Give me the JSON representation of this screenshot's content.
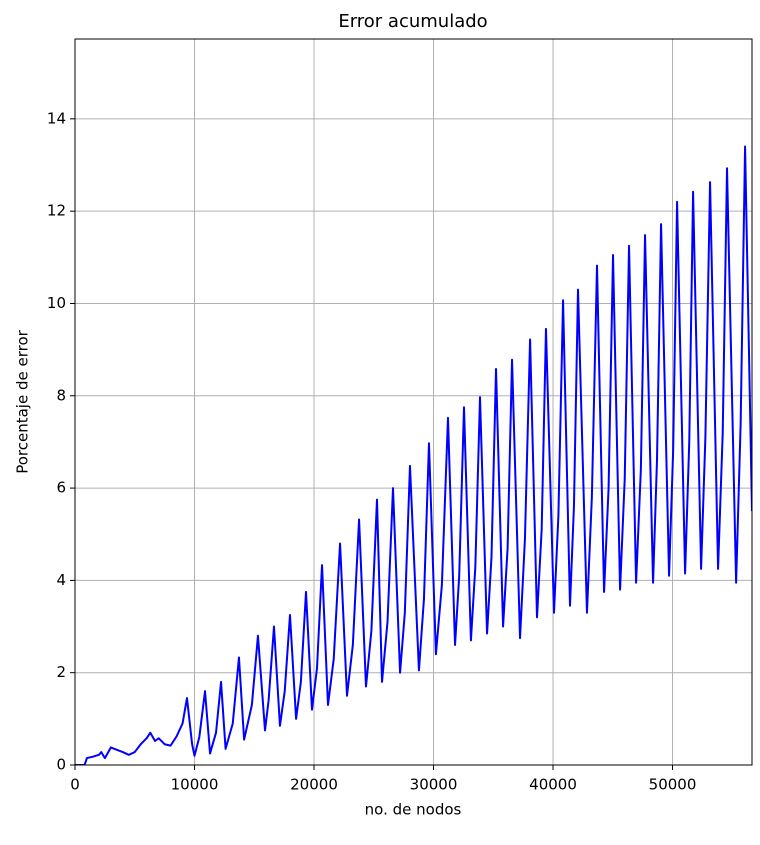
{
  "chart_data": {
    "type": "line",
    "title": "Error acumulado",
    "x_label": "no. de nodos",
    "y_label": "Porcentaje de error",
    "color": "#0000ff",
    "grid": true,
    "xlim": [
      0,
      56650
    ],
    "ylim": [
      0,
      15.73
    ],
    "xticks": [
      0,
      10000,
      20000,
      30000,
      40000,
      50000
    ],
    "yticks": [
      0,
      2,
      4,
      6,
      8,
      10,
      12,
      14
    ],
    "x": [
      0,
      800,
      1000,
      1500,
      2000,
      2200,
      2500,
      3000,
      3500,
      4000,
      4500,
      5000,
      5500,
      6000,
      6300,
      6700,
      7000,
      7500,
      8000,
      8500,
      9000,
      9370,
      9800,
      10000,
      10400,
      10880,
      11300,
      11800,
      12220,
      12600,
      13200,
      13720,
      14150,
      14800,
      15310,
      15900,
      16200,
      16650,
      17150,
      17550,
      17990,
      18500,
      18900,
      19330,
      19830,
      20250,
      20670,
      21170,
      21650,
      22180,
      22760,
      23250,
      23770,
      24350,
      24800,
      25270,
      25690,
      26150,
      26610,
      27200,
      27600,
      28030,
      28780,
      29200,
      29620,
      30200,
      30700,
      31210,
      31800,
      32150,
      32550,
      33130,
      33500,
      33890,
      34480,
      34850,
      35230,
      35820,
      36200,
      36570,
      37240,
      37650,
      38080,
      38660,
      39050,
      39410,
      40080,
      40450,
      40840,
      41420,
      41750,
      42090,
      42840,
      43250,
      43680,
      44270,
      44650,
      45020,
      45610,
      46000,
      46360,
      46950,
      47350,
      47700,
      48370,
      48700,
      49040,
      49710,
      50050,
      50380,
      51050,
      51400,
      51720,
      52390,
      52750,
      53140,
      53810,
      54200,
      54560,
      55320,
      55700,
      56070,
      56650
    ],
    "values": [
      0,
      0,
      0.15,
      0.18,
      0.22,
      0.28,
      0.15,
      0.38,
      0.33,
      0.28,
      0.22,
      0.28,
      0.45,
      0.58,
      0.7,
      0.52,
      0.58,
      0.45,
      0.42,
      0.62,
      0.9,
      1.45,
      0.45,
      0.2,
      0.6,
      1.6,
      0.25,
      0.7,
      1.8,
      0.35,
      0.9,
      2.33,
      0.55,
      1.3,
      2.8,
      0.75,
      1.4,
      3.0,
      0.85,
      1.6,
      3.25,
      1.0,
      1.8,
      3.75,
      1.2,
      2.1,
      4.33,
      1.3,
      2.3,
      4.8,
      1.5,
      2.6,
      5.32,
      1.7,
      2.9,
      5.75,
      1.8,
      3.1,
      6.0,
      2.0,
      3.3,
      6.48,
      2.05,
      3.6,
      6.97,
      2.4,
      3.9,
      7.52,
      2.6,
      4.1,
      7.75,
      2.7,
      4.3,
      7.97,
      2.85,
      4.5,
      8.58,
      3.0,
      4.7,
      8.78,
      2.75,
      4.9,
      9.22,
      3.2,
      5.1,
      9.45,
      3.3,
      5.4,
      10.07,
      3.45,
      5.6,
      10.3,
      3.3,
      5.8,
      10.82,
      3.75,
      6.0,
      11.05,
      3.8,
      6.2,
      11.25,
      3.95,
      6.4,
      11.48,
      3.95,
      6.6,
      11.72,
      4.1,
      6.8,
      12.2,
      4.15,
      7.0,
      12.42,
      4.25,
      7.1,
      12.63,
      4.25,
      7.2,
      12.93,
      3.95,
      7.4,
      13.4,
      5.5
    ]
  }
}
